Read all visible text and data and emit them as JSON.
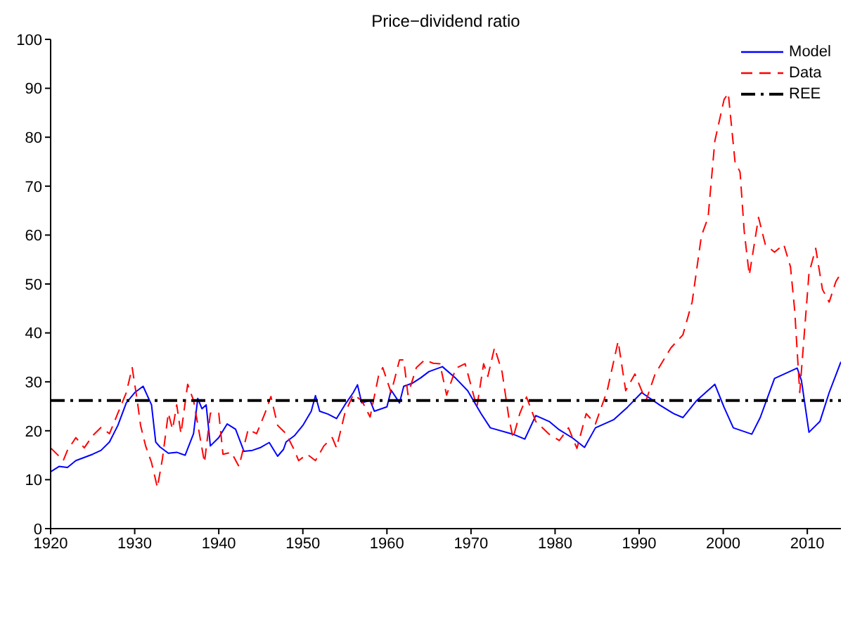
{
  "chart_data": {
    "type": "line",
    "title": "Price−dividend ratio",
    "xlim": [
      1920,
      2014
    ],
    "xticks": [
      1920,
      1930,
      1940,
      1950,
      1960,
      1970,
      1980,
      1990,
      2000,
      2010
    ],
    "ylim": [
      0,
      100
    ],
    "yticks": [
      0,
      10,
      20,
      30,
      40,
      50,
      60,
      70,
      80,
      90,
      100
    ],
    "legend": "top right",
    "marker": "none",
    "series": [
      {
        "name": "Model",
        "color": "#0000ff",
        "line_style": "solid",
        "x": [
          1920,
          1921,
          1922,
          1923,
          1925,
          1926,
          1927,
          1928,
          1929,
          1930,
          1931,
          1932,
          1932.5,
          1933,
          1934,
          1935,
          1936,
          1937,
          1937.5,
          1938,
          1938.5,
          1939,
          1940,
          1941,
          1942,
          1943,
          1944,
          1945,
          1946,
          1947,
          1947.7,
          1948,
          1949,
          1950,
          1951,
          1951.5,
          1952,
          1953,
          1954,
          1955,
          1956,
          1956.5,
          1957,
          1958,
          1958.5,
          1960,
          1960.5,
          1961.5,
          1962,
          1963,
          1964,
          1965,
          1966.6,
          1968.2,
          1969.6,
          1971.2,
          1972.3,
          1975,
          1976.4,
          1977.7,
          1979.3,
          1980.5,
          1982.1,
          1983.5,
          1984.8,
          1987,
          1988.6,
          1990.3,
          1992.5,
          1994.1,
          1995.2,
          1996.8,
          1999,
          2000.1,
          2001.2,
          2003.4,
          2004.4,
          2006.1,
          2008.8,
          2009.3,
          2010.2,
          2011.5,
          2012.6,
          2014
        ],
        "values": [
          11.6,
          12.7,
          12.5,
          13.9,
          15.2,
          16,
          17.7,
          21.1,
          25.7,
          27.8,
          29.1,
          25.3,
          17.7,
          16.7,
          15.4,
          15.6,
          15,
          19.4,
          26.6,
          24.5,
          25.3,
          16.9,
          18.6,
          21.4,
          20.3,
          15.8,
          16,
          16.6,
          17.6,
          14.8,
          16.2,
          17.7,
          19,
          21.1,
          24,
          27.2,
          24,
          23.4,
          22.5,
          25.3,
          27.8,
          29.4,
          25.7,
          26.2,
          24,
          24.9,
          28.3,
          25.7,
          29.1,
          29.7,
          30.8,
          32.1,
          33.1,
          30.7,
          28.2,
          23.5,
          20.6,
          19.3,
          18.3,
          23.1,
          21.9,
          20.2,
          18.5,
          16.6,
          20.6,
          22.3,
          24.8,
          27.8,
          25.2,
          23.5,
          22.7,
          26.1,
          29.5,
          24.8,
          20.6,
          19.3,
          22.7,
          30.7,
          32.8,
          30.3,
          19.7,
          21.9,
          27.8,
          34.1
        ]
      },
      {
        "name": "Data",
        "color": "#ff0000",
        "line_style": "dashed",
        "x": [
          1920,
          1921,
          1921.5,
          1922,
          1923,
          1924,
          1925,
          1926,
          1927,
          1928,
          1929,
          1929.7,
          1930.3,
          1930.7,
          1931.3,
          1932,
          1932.7,
          1933.3,
          1934,
          1934.5,
          1935,
          1935.5,
          1936.3,
          1937,
          1938.3,
          1939,
          1940,
          1940.5,
          1941.5,
          1942.4,
          1943.5,
          1944.5,
          1945.5,
          1946.2,
          1947,
          1948,
          1949,
          1949.5,
          1950.5,
          1951.5,
          1952.5,
          1953.5,
          1954,
          1955,
          1956,
          1957,
          1958,
          1959,
          1959.5,
          1960.5,
          1961.5,
          1962,
          1962.5,
          1963.5,
          1964.5,
          1965.5,
          1966.3,
          1967.1,
          1968.2,
          1969.3,
          1970.7,
          1971.5,
          1972,
          1972.8,
          1973.7,
          1974.5,
          1975,
          1975.8,
          1976.6,
          1977.7,
          1979.3,
          1980.5,
          1981.6,
          1982.6,
          1983.7,
          1984.8,
          1986.2,
          1987.5,
          1988.4,
          1989.5,
          1990.8,
          1991.9,
          1993.8,
          1995.2,
          1996.3,
          1997.4,
          1998.2,
          1999,
          2000.1,
          2000.6,
          2001.4,
          2002,
          2002.5,
          2003.1,
          2004.2,
          2005,
          2006.1,
          2007.2,
          2008,
          2008.5,
          2009.1,
          2010.2,
          2011,
          2011.8,
          2012.6,
          2013.4,
          2014
        ],
        "values": [
          16.5,
          14.8,
          13.9,
          16,
          18.6,
          16.5,
          19,
          20.7,
          19.4,
          23.6,
          27.8,
          32.9,
          26.2,
          21.1,
          16.9,
          13.5,
          8.4,
          14.3,
          23.6,
          20.3,
          25.3,
          19.4,
          29.5,
          26.2,
          13.5,
          23.6,
          23.6,
          15.2,
          15.6,
          12.7,
          20.3,
          19.4,
          23.6,
          27,
          21.1,
          19.4,
          16,
          13.9,
          15.2,
          13.9,
          16.9,
          18.6,
          16.5,
          23.6,
          27.4,
          26.2,
          22.8,
          31.2,
          32.9,
          27.8,
          34.5,
          34.5,
          27.4,
          32.9,
          34.5,
          33.8,
          33.7,
          27.3,
          32.8,
          33.7,
          24.8,
          33.7,
          31.1,
          37,
          32,
          22.7,
          18.5,
          23.5,
          26.9,
          21.9,
          19.3,
          18,
          20.6,
          16.4,
          23.5,
          21.4,
          28.2,
          38.3,
          28.2,
          31.6,
          26.1,
          31.6,
          37,
          39.6,
          46.3,
          59.8,
          63.6,
          79.2,
          87.7,
          89,
          75,
          72.9,
          60.7,
          51.8,
          63.6,
          58.1,
          56.5,
          58.1,
          53.5,
          44.6,
          27.8,
          52.2,
          57.3,
          48.9,
          46.3,
          50.5,
          52.2
        ]
      },
      {
        "name": "REE",
        "color": "#000000",
        "line_style": "dashdot",
        "x": [
          1920,
          2014
        ],
        "values": [
          26.2,
          26.2
        ]
      }
    ]
  }
}
